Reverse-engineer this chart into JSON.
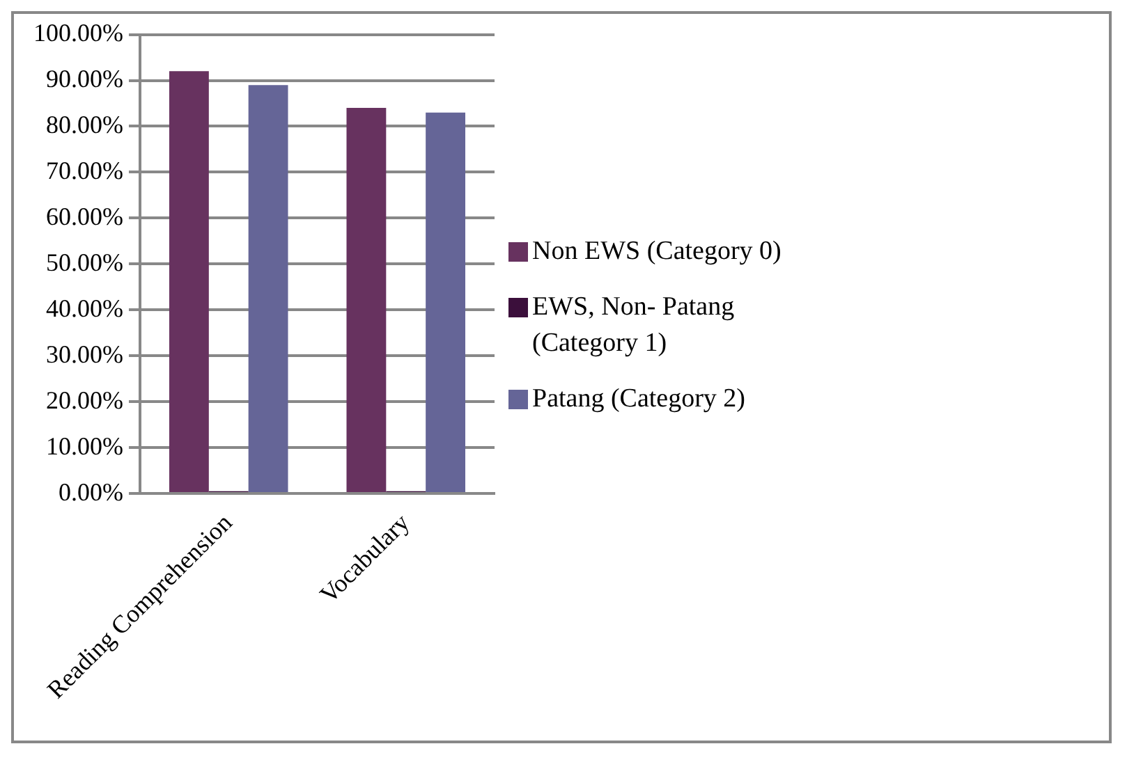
{
  "chart_data": {
    "type": "bar",
    "categories": [
      "Reading Comprehension",
      "Vocabulary"
    ],
    "series": [
      {
        "name": "Non EWS (Category 0)",
        "color": "#67325f",
        "values": [
          92,
          84
        ]
      },
      {
        "name": "EWS, Non- Patang (Category 1)",
        "color": "#3b0f3b",
        "values": [
          0.5,
          0.5
        ]
      },
      {
        "name": "Patang (Category 2)",
        "color": "#656597",
        "values": [
          89,
          83
        ]
      }
    ],
    "ylim": [
      0,
      100
    ],
    "yticks": [
      {
        "value": 0,
        "label": "0.00%"
      },
      {
        "value": 10,
        "label": "10.00%"
      },
      {
        "value": 20,
        "label": "20.00%"
      },
      {
        "value": 30,
        "label": "30.00%"
      },
      {
        "value": 40,
        "label": "40.00%"
      },
      {
        "value": 50,
        "label": "50.00%"
      },
      {
        "value": 60,
        "label": "60.00%"
      },
      {
        "value": 70,
        "label": "70.00%"
      },
      {
        "value": 80,
        "label": "80.00%"
      },
      {
        "value": 90,
        "label": "90.00%"
      },
      {
        "value": 100,
        "label": "100.00%"
      }
    ],
    "grid": "y",
    "legend": "right"
  }
}
